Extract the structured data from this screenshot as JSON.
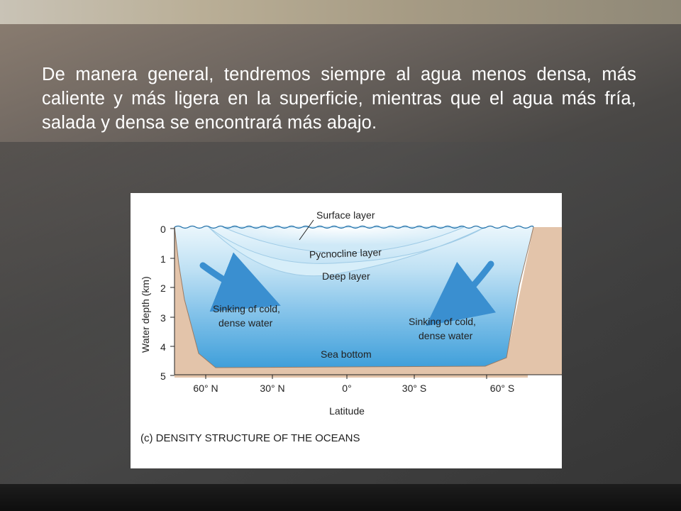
{
  "slide": {
    "text": "De manera general, tendremos siempre al agua menos densa, más caliente y más ligera en la superficie, mientras que el agua más fría, salada y densa se encontrará más abajo."
  },
  "figure": {
    "caption": "(c) DENSITY STRUCTURE OF THE OCEANS",
    "y_axis_label": "Water depth (km)",
    "x_axis_label": "Latitude",
    "depth_ticks": [
      "0",
      "1",
      "2",
      "3",
      "4",
      "5"
    ],
    "latitude_ticks": [
      "60° N",
      "30° N",
      "0°",
      "30° S",
      "60° S"
    ],
    "labels": {
      "surface_layer": "Surface layer",
      "pycnocline_layer": "Pycnocline layer",
      "deep_layer": "Deep layer",
      "sinking_left_line1": "Sinking of cold,",
      "sinking_left_line2": "dense water",
      "sinking_right_line1": "Sinking of cold,",
      "sinking_right_line2": "dense water",
      "sea_bottom": "Sea bottom"
    },
    "colors": {
      "water_top": "#e6f3fb",
      "water_deep": "#4aa6dc",
      "land": "#e2c2a8",
      "arrow": "#3a8fd0"
    }
  }
}
